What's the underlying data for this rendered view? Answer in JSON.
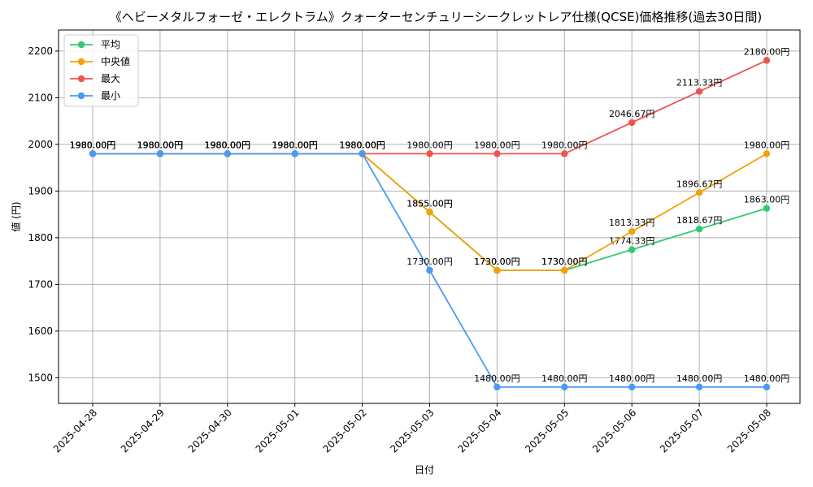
{
  "chart_data": {
    "type": "line",
    "title": "《ヘビーメタルフォーゼ・エレクトラム》クォーターセンチュリーシークレットレア仕様(QCSE)価格推移(過去30日間)",
    "xlabel": "日付",
    "ylabel": "値 (円)",
    "ylim": [
      1445,
      2245
    ],
    "yticks": [
      1500,
      1600,
      1700,
      1800,
      1900,
      2000,
      2100,
      2200
    ],
    "grid": true,
    "legend_position": "top-left",
    "categories": [
      "2025-04-28",
      "2025-04-29",
      "2025-04-30",
      "2025-05-01",
      "2025-05-02",
      "2025-05-03",
      "2025-05-04",
      "2025-05-05",
      "2025-05-06",
      "2025-05-07",
      "2025-05-08"
    ],
    "label_suffix": "円",
    "series": [
      {
        "name": "平均",
        "color": "#2ecc71",
        "values": [
          1980,
          1980,
          1980,
          1980,
          1980,
          1855,
          1730,
          1730,
          1774.33,
          1818.67,
          1863
        ]
      },
      {
        "name": "中央値",
        "color": "#f0a30a",
        "values": [
          1980,
          1980,
          1980,
          1980,
          1980,
          1855,
          1730,
          1730,
          1813.33,
          1896.67,
          1980
        ]
      },
      {
        "name": "最大",
        "color": "#ef5350",
        "values": [
          1980,
          1980,
          1980,
          1980,
          1980,
          1980,
          1980,
          1980,
          2046.67,
          2113.33,
          2180
        ]
      },
      {
        "name": "最小",
        "color": "#4a9af5",
        "values": [
          1980,
          1980,
          1980,
          1980,
          1980,
          1730,
          1480,
          1480,
          1480,
          1480,
          1480
        ]
      }
    ]
  }
}
